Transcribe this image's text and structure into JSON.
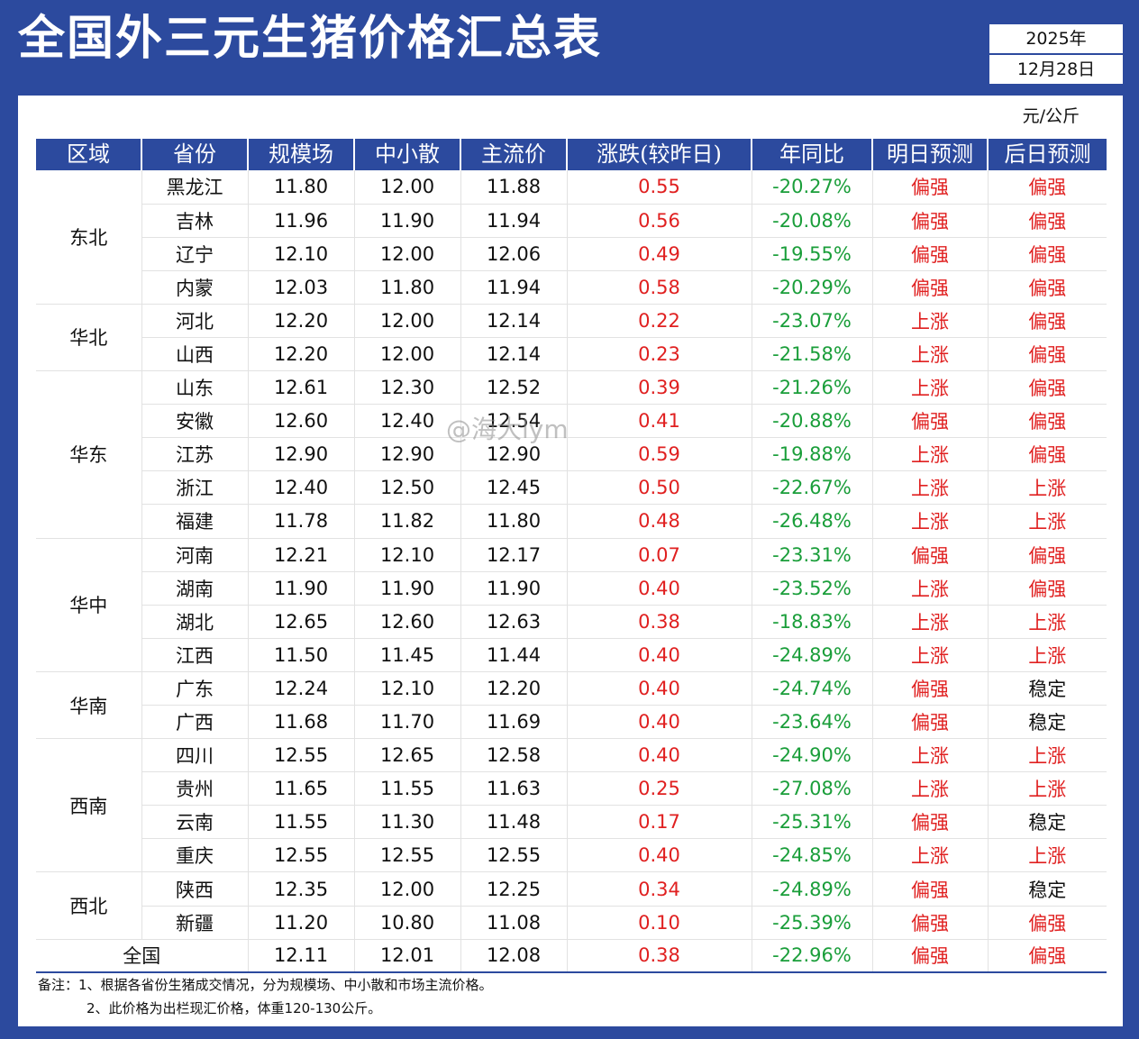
{
  "title": "全国外三元生猪价格汇总表",
  "date": {
    "year": "2025年",
    "day": "12月28日"
  },
  "unit": "元/公斤",
  "headers": [
    "区域",
    "省份",
    "规模场",
    "中小散",
    "主流价",
    "涨跌(较昨日)",
    "年同比",
    "明日预测",
    "后日预测"
  ],
  "regions": [
    {
      "name": "东北",
      "rows": [
        {
          "province": "黑龙江",
          "scale": "11.80",
          "small": "12.00",
          "main": "11.88",
          "change": "0.55",
          "yoy": "-20.27%",
          "tomorrow": "偏强",
          "after": "偏强"
        },
        {
          "province": "吉林",
          "scale": "11.96",
          "small": "11.90",
          "main": "11.94",
          "change": "0.56",
          "yoy": "-20.08%",
          "tomorrow": "偏强",
          "after": "偏强"
        },
        {
          "province": "辽宁",
          "scale": "12.10",
          "small": "12.00",
          "main": "12.06",
          "change": "0.49",
          "yoy": "-19.55%",
          "tomorrow": "偏强",
          "after": "偏强"
        },
        {
          "province": "内蒙",
          "scale": "12.03",
          "small": "11.80",
          "main": "11.94",
          "change": "0.58",
          "yoy": "-20.29%",
          "tomorrow": "偏强",
          "after": "偏强"
        }
      ]
    },
    {
      "name": "华北",
      "rows": [
        {
          "province": "河北",
          "scale": "12.20",
          "small": "12.00",
          "main": "12.14",
          "change": "0.22",
          "yoy": "-23.07%",
          "tomorrow": "上涨",
          "after": "偏强"
        },
        {
          "province": "山西",
          "scale": "12.20",
          "small": "12.00",
          "main": "12.14",
          "change": "0.23",
          "yoy": "-21.58%",
          "tomorrow": "上涨",
          "after": "偏强"
        }
      ]
    },
    {
      "name": "华东",
      "rows": [
        {
          "province": "山东",
          "scale": "12.61",
          "small": "12.30",
          "main": "12.52",
          "change": "0.39",
          "yoy": "-21.26%",
          "tomorrow": "上涨",
          "after": "偏强"
        },
        {
          "province": "安徽",
          "scale": "12.60",
          "small": "12.40",
          "main": "12.54",
          "change": "0.41",
          "yoy": "-20.88%",
          "tomorrow": "偏强",
          "after": "偏强"
        },
        {
          "province": "江苏",
          "scale": "12.90",
          "small": "12.90",
          "main": "12.90",
          "change": "0.59",
          "yoy": "-19.88%",
          "tomorrow": "上涨",
          "after": "偏强"
        },
        {
          "province": "浙江",
          "scale": "12.40",
          "small": "12.50",
          "main": "12.45",
          "change": "0.50",
          "yoy": "-22.67%",
          "tomorrow": "上涨",
          "after": "上涨"
        },
        {
          "province": "福建",
          "scale": "11.78",
          "small": "11.82",
          "main": "11.80",
          "change": "0.48",
          "yoy": "-26.48%",
          "tomorrow": "上涨",
          "after": "上涨"
        }
      ]
    },
    {
      "name": "华中",
      "rows": [
        {
          "province": "河南",
          "scale": "12.21",
          "small": "12.10",
          "main": "12.17",
          "change": "0.07",
          "yoy": "-23.31%",
          "tomorrow": "偏强",
          "after": "偏强"
        },
        {
          "province": "湖南",
          "scale": "11.90",
          "small": "11.90",
          "main": "11.90",
          "change": "0.40",
          "yoy": "-23.52%",
          "tomorrow": "上涨",
          "after": "偏强"
        },
        {
          "province": "湖北",
          "scale": "12.65",
          "small": "12.60",
          "main": "12.63",
          "change": "0.38",
          "yoy": "-18.83%",
          "tomorrow": "上涨",
          "after": "上涨"
        },
        {
          "province": "江西",
          "scale": "11.50",
          "small": "11.45",
          "main": "11.44",
          "change": "0.40",
          "yoy": "-24.89%",
          "tomorrow": "上涨",
          "after": "上涨"
        }
      ]
    },
    {
      "name": "华南",
      "rows": [
        {
          "province": "广东",
          "scale": "12.24",
          "small": "12.10",
          "main": "12.20",
          "change": "0.40",
          "yoy": "-24.74%",
          "tomorrow": "偏强",
          "after": "稳定"
        },
        {
          "province": "广西",
          "scale": "11.68",
          "small": "11.70",
          "main": "11.69",
          "change": "0.40",
          "yoy": "-23.64%",
          "tomorrow": "偏强",
          "after": "稳定"
        }
      ]
    },
    {
      "name": "西南",
      "rows": [
        {
          "province": "四川",
          "scale": "12.55",
          "small": "12.65",
          "main": "12.58",
          "change": "0.40",
          "yoy": "-24.90%",
          "tomorrow": "上涨",
          "after": "上涨"
        },
        {
          "province": "贵州",
          "scale": "11.65",
          "small": "11.55",
          "main": "11.63",
          "change": "0.25",
          "yoy": "-27.08%",
          "tomorrow": "上涨",
          "after": "上涨"
        },
        {
          "province": "云南",
          "scale": "11.55",
          "small": "11.30",
          "main": "11.48",
          "change": "0.17",
          "yoy": "-25.31%",
          "tomorrow": "偏强",
          "after": "稳定"
        },
        {
          "province": "重庆",
          "scale": "12.55",
          "small": "12.55",
          "main": "12.55",
          "change": "0.40",
          "yoy": "-24.85%",
          "tomorrow": "上涨",
          "after": "上涨"
        }
      ]
    },
    {
      "name": "西北",
      "rows": [
        {
          "province": "陕西",
          "scale": "12.35",
          "small": "12.00",
          "main": "12.25",
          "change": "0.34",
          "yoy": "-24.89%",
          "tomorrow": "偏强",
          "after": "稳定"
        },
        {
          "province": "新疆",
          "scale": "11.20",
          "small": "10.80",
          "main": "11.08",
          "change": "0.10",
          "yoy": "-25.39%",
          "tomorrow": "偏强",
          "after": "偏强"
        }
      ]
    }
  ],
  "total": {
    "label": "全国",
    "scale": "12.11",
    "small": "12.01",
    "main": "12.08",
    "change": "0.38",
    "yoy": "-22.96%",
    "tomorrow": "偏强",
    "after": "偏强"
  },
  "notes": [
    "备注：1、根据各省份生猪成交情况，分为规模场、中小散和市场主流价格。",
    "2、此价格为出栏现汇价格，体重120-130公斤。"
  ],
  "watermark": "@海大lym",
  "colors": {
    "header_bg": "#2c4a9e",
    "up": "#e02020",
    "down": "#1a9e3a"
  }
}
